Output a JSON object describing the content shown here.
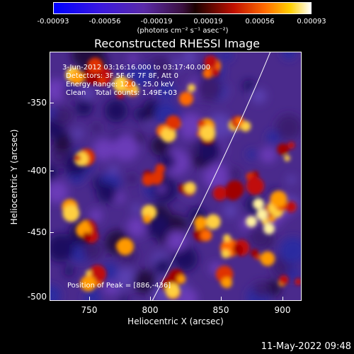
{
  "colorbar": {
    "labels": [
      "-0.00093",
      "-0.00056",
      "-0.00019",
      "0.00019",
      "0.00056",
      "0.00093"
    ],
    "unit": "(photons cm⁻² s⁻¹ asec⁻²)"
  },
  "title": "Reconstructed RHESSI Image",
  "annotations": {
    "time": "3-Jun-2012 03:16:16.000 to 03:17:40.000",
    "detectors": "Detectors: 3F 5F 6F 7F 8F, Att 0",
    "energy": "Energy Range: 12.0 - 25.0 keV",
    "clean": "Clean    Total counts: 1.49E+03",
    "peak": "Position of Peak = [886,-436]"
  },
  "axes": {
    "xlabel": "Heliocentric X (arcsec)",
    "ylabel": "Heliocentric Y (arcsec)",
    "xticks": [
      "750",
      "800",
      "850",
      "900"
    ],
    "yticks": [
      "-350",
      "-400",
      "-450",
      "-500"
    ]
  },
  "timestamp": "11-May-2022 09:48",
  "colors": {
    "background": "#000000",
    "text": "#ffffff",
    "limb_line": "#ffffff"
  }
}
